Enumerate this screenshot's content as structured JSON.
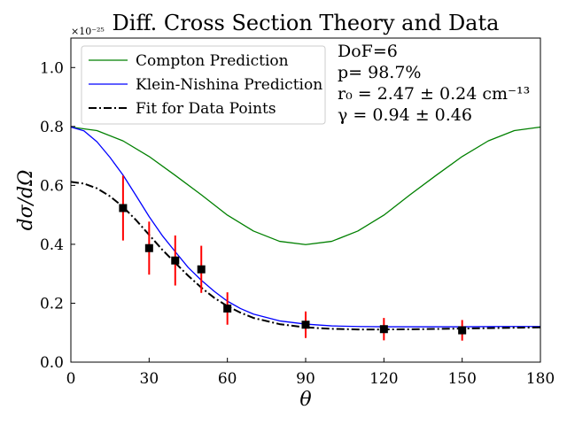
{
  "chart_data": {
    "type": "scatter",
    "title": "Diff. Cross Section Theory and Data",
    "xlabel": "θ",
    "ylabel": "dσ/dΩ",
    "y_scale_label": "×10⁻²⁵",
    "xlim": [
      0,
      180
    ],
    "ylim": [
      0,
      1.1
    ],
    "xticks": [
      0,
      30,
      60,
      90,
      120,
      150,
      180
    ],
    "yticks": [
      0.0,
      0.2,
      0.4,
      0.6,
      0.8,
      1.0
    ],
    "xtick_labels": [
      "0",
      "30",
      "60",
      "90",
      "120",
      "150",
      "180"
    ],
    "ytick_labels": [
      "0.0",
      "0.2",
      "0.4",
      "0.6",
      "0.8",
      "1.0"
    ],
    "grid": false,
    "legend_position": "top-left",
    "series": [
      {
        "name": "Compton Prediction",
        "kind": "line",
        "color": "#008000",
        "dash": "solid",
        "x": [
          0,
          10,
          20,
          30,
          40,
          50,
          60,
          70,
          80,
          90,
          100,
          110,
          120,
          130,
          140,
          150,
          160,
          170,
          180
        ],
        "y": [
          0.798,
          0.786,
          0.751,
          0.698,
          0.634,
          0.568,
          0.499,
          0.445,
          0.41,
          0.399,
          0.41,
          0.445,
          0.499,
          0.568,
          0.634,
          0.698,
          0.751,
          0.786,
          0.798
        ]
      },
      {
        "name": "Klein-Nishina Prediction",
        "kind": "line",
        "color": "#0000ff",
        "dash": "solid",
        "x": [
          0,
          5,
          10,
          15,
          20,
          25,
          30,
          35,
          40,
          45,
          50,
          55,
          60,
          65,
          70,
          80,
          90,
          100,
          110,
          120,
          135,
          150,
          165,
          180
        ],
        "y": [
          0.798,
          0.785,
          0.748,
          0.695,
          0.635,
          0.565,
          0.494,
          0.43,
          0.375,
          0.321,
          0.278,
          0.24,
          0.207,
          0.182,
          0.163,
          0.14,
          0.129,
          0.123,
          0.121,
          0.12,
          0.12,
          0.12,
          0.121,
          0.121
        ]
      },
      {
        "name": "Fit for Data Points",
        "kind": "line",
        "color": "#000000",
        "dash": "dashdot",
        "x": [
          0,
          5,
          10,
          15,
          20,
          25,
          30,
          35,
          40,
          45,
          50,
          55,
          60,
          65,
          70,
          80,
          90,
          100,
          110,
          120,
          135,
          150,
          165,
          180
        ],
        "y": [
          0.612,
          0.606,
          0.59,
          0.563,
          0.527,
          0.482,
          0.432,
          0.382,
          0.337,
          0.293,
          0.253,
          0.218,
          0.19,
          0.168,
          0.15,
          0.129,
          0.118,
          0.113,
          0.111,
          0.111,
          0.112,
          0.114,
          0.116,
          0.118
        ]
      },
      {
        "name": "",
        "kind": "points",
        "color": "#000000",
        "errorbar_color": "#ff0000",
        "x": [
          20,
          30,
          40,
          50,
          60,
          90,
          120,
          150
        ],
        "y": [
          0.523,
          0.387,
          0.345,
          0.315,
          0.182,
          0.127,
          0.112,
          0.108
        ],
        "yerr": [
          0.11,
          0.09,
          0.085,
          0.08,
          0.055,
          0.045,
          0.038,
          0.035
        ]
      }
    ],
    "annotation_lines": [
      "DoF=6",
      "p= 98.7%",
      "r₀ = 2.47 ± 0.24 cm⁻¹³",
      "γ = 0.94 ± 0.46"
    ]
  }
}
